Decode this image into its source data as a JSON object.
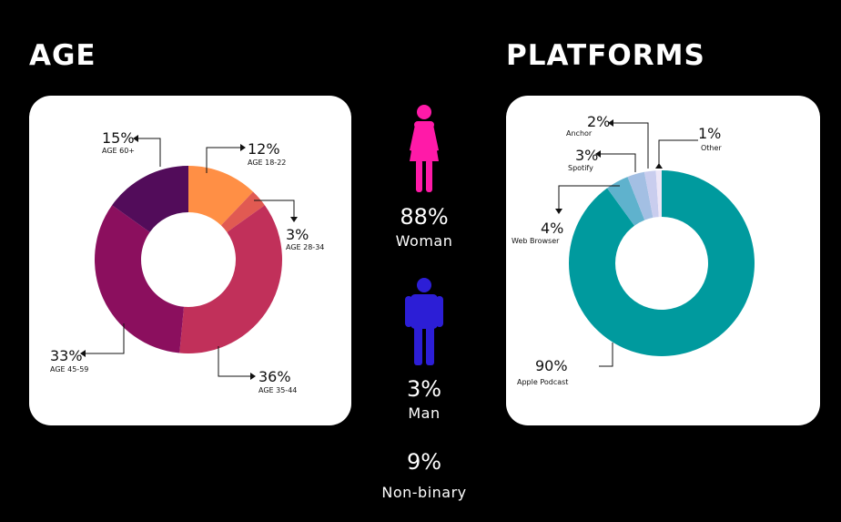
{
  "age": {
    "heading": "AGE",
    "chart_data": {
      "type": "donut",
      "slices": [
        {
          "pct": "12%",
          "label": "AGE 18-22",
          "value": 12,
          "color": "#ff8f45"
        },
        {
          "pct": "3%",
          "label": "AGE 28-34",
          "value": 3,
          "color": "#e15a52"
        },
        {
          "pct": "36%",
          "label": "AGE 35-44",
          "value": 36,
          "color": "#c1305a"
        },
        {
          "pct": "33%",
          "label": "AGE 45-59",
          "value": 33,
          "color": "#8b0f5e"
        },
        {
          "pct": "15%",
          "label": "AGE 60+",
          "value": 15,
          "color": "#520c5a"
        }
      ]
    }
  },
  "gender": {
    "woman": {
      "pct": "88%",
      "label": "Woman",
      "color": "#ff1aa8"
    },
    "man": {
      "pct": "3%",
      "label": "Man",
      "color": "#2c1ed6"
    },
    "nonbinary": {
      "pct": "9%",
      "label": "Non-binary"
    },
    "icons": {
      "woman": "woman-icon",
      "man": "man-icon"
    }
  },
  "platforms": {
    "heading": "PLATFORMS",
    "chart_data": {
      "type": "donut",
      "slices": [
        {
          "pct": "90%",
          "label": "Apple Podcast",
          "value": 90,
          "color": "#009a9e"
        },
        {
          "pct": "4%",
          "label": "Web Browser",
          "value": 4,
          "color": "#5fb2cd"
        },
        {
          "pct": "3%",
          "label": "Spotify",
          "value": 3,
          "color": "#a3bfe3"
        },
        {
          "pct": "2%",
          "label": "Anchor",
          "value": 2,
          "color": "#c9cdee"
        },
        {
          "pct": "1%",
          "label": "Other",
          "value": 1,
          "color": "#ede6f7"
        }
      ]
    }
  }
}
